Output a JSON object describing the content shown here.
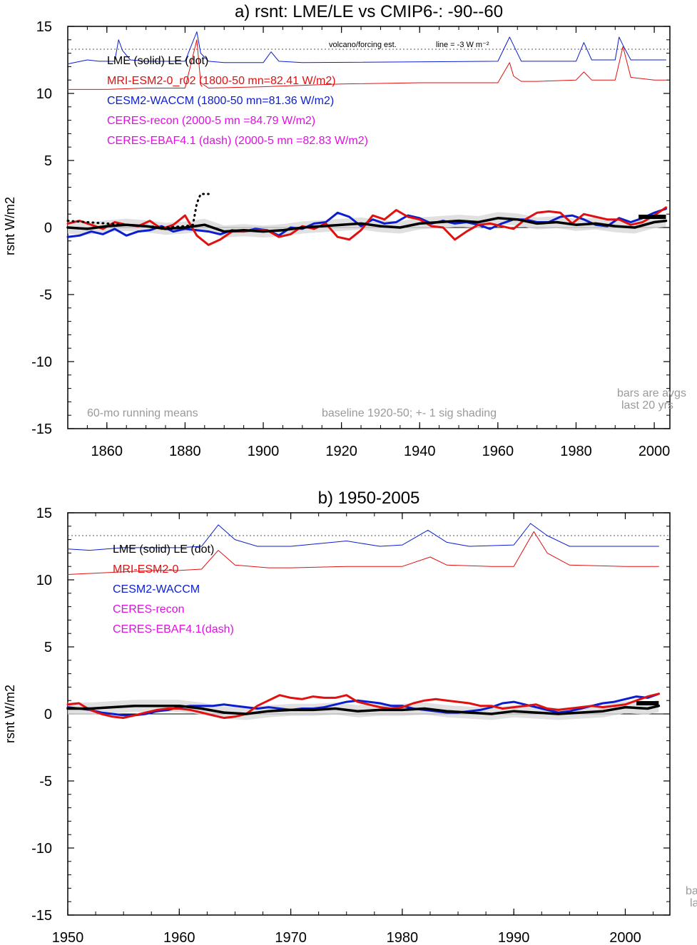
{
  "panels": [
    {
      "title": "a) rsnt: LME/LE vs CMIP6-: -90--60",
      "ylabel": "rsnt W/m2",
      "xlim": [
        1850,
        2004
      ],
      "ylim": [
        -15,
        15
      ],
      "xticks": [
        1860,
        1880,
        1900,
        1920,
        1940,
        1960,
        1980,
        2000
      ],
      "xtick_labels": [
        "1860",
        "1880",
        "1900",
        "1920",
        "1940",
        "1960",
        "1980",
        "2000"
      ],
      "yticks": [
        15,
        10,
        5,
        0,
        -5,
        -10,
        -15
      ],
      "ytick_labels": [
        "15",
        "10",
        "5",
        "0",
        "-5",
        "-10",
        "-15"
      ],
      "legend": [
        {
          "text": "LME (solid)   LE (dot)",
          "color": "#000000"
        },
        {
          "text": "MRI-ESM2-0_r02 (1800-50 mn=82.41 W/m2)",
          "color": "#e01010"
        },
        {
          "text": "CESM2-WACCM (1800-50 mn=81.36 W/m2)",
          "color": "#0a1ed0"
        },
        {
          "text": "CERES-recon (2000-5 mn =84.79 W/m2)",
          "color": "#e010e0"
        },
        {
          "text": "CERES-EBAF4.1 (dash) (2000-5 mn =82.83 W/m2)",
          "color": "#e010e0"
        }
      ],
      "annot_volcano": "volcano/forcing est.",
      "annot_line": "line = -3 W m⁻²",
      "annot_running": "60-mo running means",
      "annot_baseline": "baseline 1920-50; +- 1 sig shading",
      "annot_bars_1": "bars are avgs",
      "annot_bars_2": "last 20 yrs"
    },
    {
      "title": "b) 1950-2005",
      "ylabel": "rsnt W/m2",
      "xlim": [
        1950,
        2004
      ],
      "ylim": [
        -15,
        15
      ],
      "xticks": [
        1950,
        1960,
        1970,
        1980,
        1990,
        2000
      ],
      "xtick_labels": [
        "1950",
        "1960",
        "1970",
        "1980",
        "1990",
        "2000"
      ],
      "yticks": [
        15,
        10,
        5,
        0,
        -5,
        -10,
        -15
      ],
      "ytick_labels": [
        "15",
        "10",
        "5",
        "0",
        "-5",
        "-10",
        "-15"
      ],
      "legend": [
        {
          "text": "LME (solid)      LE (dot)",
          "color": "#000000"
        },
        {
          "text": "MRI-ESM2-0",
          "color": "#e01010"
        },
        {
          "text": "CESM2-WACCM",
          "color": "#0a1ed0"
        },
        {
          "text": "CERES-recon",
          "color": "#e010e0"
        },
        {
          "text": "CERES-EBAF4.1(dash)",
          "color": "#e010e0"
        }
      ],
      "annot_bars_1": "ba",
      "annot_bars_2": "la"
    }
  ],
  "chart_data": [
    {
      "type": "line",
      "title": "a) rsnt: LME/LE vs CMIP6-: -90--60",
      "ylabel": "rsnt W/m2",
      "xlim": [
        1850,
        2004
      ],
      "ylim": [
        -15,
        15
      ],
      "reference_line_y": 13.3,
      "series": [
        {
          "name": "LME",
          "color": "#000000",
          "style": "solid",
          "x": [
            1850,
            1855,
            1860,
            1865,
            1870,
            1875,
            1880,
            1885,
            1890,
            1895,
            1900,
            1905,
            1910,
            1915,
            1920,
            1925,
            1930,
            1935,
            1940,
            1945,
            1950,
            1955,
            1960,
            1965,
            1970,
            1975,
            1980,
            1985,
            1990,
            1995,
            2000,
            2003
          ],
          "y": [
            0.0,
            -0.1,
            0.1,
            0.2,
            0.1,
            -0.1,
            0.0,
            0.2,
            -0.3,
            -0.2,
            -0.3,
            -0.2,
            0.0,
            0.1,
            0.2,
            0.3,
            0.1,
            0.0,
            0.3,
            0.4,
            0.5,
            0.4,
            0.7,
            0.6,
            0.3,
            0.4,
            0.2,
            0.3,
            0.1,
            0.0,
            0.4,
            0.5
          ]
        },
        {
          "name": "LE",
          "color": "#000000",
          "style": "dot",
          "x": [
            1850,
            1855,
            1860,
            1865,
            1870,
            1875,
            1880,
            1882,
            1883,
            1884,
            1886
          ],
          "y": [
            0.5,
            0.4,
            0.3,
            0.2,
            0.1,
            0.0,
            0.1,
            0.2,
            1.8,
            2.5,
            2.5
          ]
        },
        {
          "name": "MRI-ESM2-0_r02",
          "color": "#e01010",
          "style": "solid",
          "x": [
            1850,
            1853,
            1856,
            1859,
            1862,
            1865,
            1868,
            1871,
            1874,
            1877,
            1880,
            1883,
            1886,
            1889,
            1892,
            1895,
            1898,
            1901,
            1904,
            1907,
            1910,
            1913,
            1916,
            1919,
            1922,
            1925,
            1928,
            1931,
            1934,
            1937,
            1940,
            1943,
            1946,
            1949,
            1952,
            1955,
            1958,
            1961,
            1964,
            1967,
            1970,
            1973,
            1976,
            1979,
            1982,
            1985,
            1988,
            1991,
            1994,
            1997,
            2000,
            2003
          ],
          "y": [
            0.3,
            0.5,
            0.2,
            -0.1,
            0.4,
            0.2,
            0.1,
            0.5,
            -0.1,
            0.2,
            0.9,
            -0.6,
            -1.3,
            -0.9,
            -0.3,
            -0.3,
            -0.2,
            -0.2,
            -0.7,
            -0.5,
            0.1,
            -0.1,
            0.3,
            -0.7,
            -0.9,
            -0.2,
            0.9,
            0.6,
            1.3,
            0.8,
            0.6,
            0.1,
            0.0,
            -0.9,
            -0.3,
            0.2,
            0.3,
            0.1,
            -0.1,
            0.6,
            1.1,
            1.2,
            1.1,
            0.3,
            1.0,
            0.8,
            0.6,
            0.6,
            0.2,
            0.4,
            0.9,
            1.5
          ]
        },
        {
          "name": "CESM2-WACCM",
          "color": "#0a1ed0",
          "style": "solid",
          "x": [
            1850,
            1853,
            1856,
            1859,
            1862,
            1865,
            1868,
            1871,
            1874,
            1877,
            1880,
            1883,
            1886,
            1889,
            1892,
            1895,
            1898,
            1901,
            1904,
            1907,
            1910,
            1913,
            1916,
            1919,
            1922,
            1925,
            1928,
            1931,
            1934,
            1937,
            1940,
            1943,
            1946,
            1949,
            1952,
            1955,
            1958,
            1961,
            1964,
            1967,
            1970,
            1973,
            1976,
            1979,
            1982,
            1985,
            1988,
            1991,
            1994,
            1997,
            2000,
            2003
          ],
          "y": [
            -0.7,
            -0.6,
            -0.3,
            -0.5,
            -0.1,
            -0.6,
            -0.3,
            -0.2,
            0.1,
            -0.3,
            -0.1,
            -0.2,
            -0.3,
            -0.5,
            -0.2,
            -0.3,
            -0.1,
            -0.2,
            -0.6,
            0.0,
            -0.1,
            0.3,
            0.4,
            1.1,
            0.8,
            0.1,
            0.6,
            0.3,
            0.4,
            0.9,
            0.7,
            0.3,
            0.5,
            0.3,
            0.4,
            0.2,
            -0.1,
            0.3,
            0.6,
            0.6,
            0.4,
            0.4,
            0.8,
            0.9,
            0.6,
            0.2,
            0.1,
            0.7,
            0.4,
            0.7,
            1.1,
            1.4
          ]
        },
        {
          "name": "CESM2-WACCM (volcano/forcing est.)",
          "color": "#0a1ed0",
          "style": "thin",
          "x": [
            1850,
            1855,
            1858,
            1862,
            1863,
            1864,
            1866,
            1870,
            1880,
            1883,
            1884,
            1886,
            1890,
            1900,
            1902,
            1904,
            1910,
            1960,
            1963,
            1964,
            1966,
            1970,
            1980,
            1982,
            1984,
            1990,
            1991,
            1992,
            1994,
            2000,
            2003
          ],
          "y": [
            12.2,
            12.5,
            12.4,
            12.4,
            14.0,
            13.2,
            12.5,
            12.4,
            12.4,
            14.6,
            13.0,
            12.4,
            12.3,
            12.3,
            13.1,
            12.4,
            12.3,
            12.4,
            14.2,
            13.6,
            12.4,
            12.4,
            12.4,
            13.8,
            12.5,
            12.5,
            14.2,
            13.6,
            12.5,
            12.5,
            12.5
          ]
        },
        {
          "name": "MRI-ESM2-0 (volcano/forcing est.)",
          "color": "#e01010",
          "style": "thin",
          "x": [
            1850,
            1860,
            1870,
            1880,
            1883,
            1884,
            1886,
            1900,
            1920,
            1940,
            1960,
            1963,
            1964,
            1966,
            1970,
            1980,
            1982,
            1984,
            1990,
            1992,
            1994,
            2000,
            2003
          ],
          "y": [
            10.3,
            10.3,
            10.4,
            10.4,
            14.0,
            10.8,
            10.4,
            10.5,
            10.7,
            10.8,
            10.8,
            12.3,
            11.3,
            10.9,
            10.9,
            11.0,
            11.6,
            11.0,
            11.0,
            13.5,
            11.2,
            11.0,
            11.0
          ]
        }
      ],
      "bars_last_20_yrs": [
        {
          "color": "#000000",
          "y": 0.8,
          "x": [
            1996,
            2003
          ]
        }
      ]
    },
    {
      "type": "line",
      "title": "b) 1950-2005",
      "ylabel": "rsnt W/m2",
      "xlim": [
        1950,
        2004
      ],
      "ylim": [
        -15,
        15
      ],
      "reference_line_y": 13.3,
      "series": [
        {
          "name": "LME",
          "color": "#000000",
          "style": "solid",
          "x": [
            1950,
            1952,
            1954,
            1956,
            1958,
            1960,
            1962,
            1964,
            1966,
            1968,
            1970,
            1972,
            1974,
            1976,
            1978,
            1980,
            1982,
            1984,
            1986,
            1988,
            1990,
            1992,
            1994,
            1996,
            1998,
            2000,
            2002,
            2003
          ],
          "y": [
            0.4,
            0.4,
            0.5,
            0.6,
            0.6,
            0.6,
            0.4,
            0.1,
            0.0,
            0.2,
            0.3,
            0.3,
            0.4,
            0.2,
            0.3,
            0.3,
            0.4,
            0.2,
            0.1,
            0.0,
            0.2,
            0.1,
            0.0,
            0.1,
            0.2,
            0.5,
            0.4,
            0.6
          ]
        },
        {
          "name": "MRI-ESM2-0",
          "color": "#e01010",
          "style": "solid",
          "x": [
            1950,
            1951,
            1952,
            1953,
            1954,
            1955,
            1956,
            1957,
            1958,
            1959,
            1960,
            1961,
            1962,
            1963,
            1964,
            1965,
            1966,
            1967,
            1968,
            1969,
            1970,
            1971,
            1972,
            1973,
            1974,
            1975,
            1976,
            1977,
            1978,
            1979,
            1980,
            1981,
            1982,
            1983,
            1984,
            1985,
            1986,
            1987,
            1988,
            1989,
            1990,
            1991,
            1992,
            1993,
            1994,
            1995,
            1996,
            1997,
            1998,
            1999,
            2000,
            2001,
            2002,
            2003
          ],
          "y": [
            0.7,
            0.8,
            0.3,
            0.0,
            -0.2,
            -0.3,
            -0.1,
            0.1,
            0.3,
            0.4,
            0.4,
            0.3,
            0.1,
            -0.1,
            -0.3,
            -0.2,
            0.0,
            0.6,
            1.0,
            1.4,
            1.2,
            1.1,
            1.3,
            1.2,
            1.2,
            1.4,
            0.9,
            0.7,
            0.5,
            0.4,
            0.5,
            0.8,
            1.0,
            1.1,
            1.0,
            0.9,
            0.8,
            0.6,
            0.6,
            0.4,
            0.5,
            0.6,
            0.7,
            0.4,
            0.3,
            0.4,
            0.5,
            0.6,
            0.5,
            0.6,
            0.7,
            1.0,
            1.3,
            1.5
          ]
        },
        {
          "name": "CESM2-WACCM",
          "color": "#0a1ed0",
          "style": "solid",
          "x": [
            1950,
            1951,
            1952,
            1953,
            1954,
            1955,
            1956,
            1957,
            1958,
            1959,
            1960,
            1961,
            1962,
            1963,
            1964,
            1965,
            1966,
            1967,
            1968,
            1969,
            1970,
            1971,
            1972,
            1973,
            1974,
            1975,
            1976,
            1977,
            1978,
            1979,
            1980,
            1981,
            1982,
            1983,
            1984,
            1985,
            1986,
            1987,
            1988,
            1989,
            1990,
            1991,
            1992,
            1993,
            1994,
            1995,
            1996,
            1997,
            1998,
            1999,
            2000,
            2001,
            2002,
            2003
          ],
          "y": [
            0.5,
            0.4,
            0.3,
            0.1,
            0.0,
            -0.1,
            -0.1,
            0.0,
            0.2,
            0.3,
            0.5,
            0.6,
            0.6,
            0.6,
            0.7,
            0.6,
            0.5,
            0.4,
            0.5,
            0.4,
            0.3,
            0.4,
            0.4,
            0.5,
            0.7,
            0.9,
            1.0,
            0.9,
            0.8,
            0.6,
            0.6,
            0.4,
            0.3,
            0.2,
            0.1,
            0.1,
            0.2,
            0.3,
            0.5,
            0.8,
            0.9,
            0.7,
            0.5,
            0.3,
            0.1,
            0.2,
            0.4,
            0.6,
            0.8,
            0.9,
            1.1,
            1.3,
            1.2,
            1.5
          ]
        },
        {
          "name": "CESM2-WACCM (volcano/forcing est.)",
          "color": "#0a1ed0",
          "style": "thin",
          "x": [
            1950,
            1952,
            1955,
            1958,
            1960,
            1962,
            1963.5,
            1965,
            1967,
            1970,
            1975,
            1978,
            1980,
            1982.3,
            1984,
            1986,
            1990,
            1991.5,
            1993,
            1995,
            2000,
            2003
          ],
          "y": [
            12.3,
            12.2,
            12.4,
            12.4,
            12.4,
            12.5,
            14.1,
            13.0,
            12.5,
            12.5,
            12.9,
            12.5,
            12.6,
            13.7,
            12.8,
            12.5,
            12.6,
            14.2,
            13.3,
            12.5,
            12.5,
            12.5
          ]
        },
        {
          "name": "MRI-ESM2-0 (volcano/forcing est.)",
          "color": "#e01010",
          "style": "thin",
          "x": [
            1950,
            1955,
            1958,
            1960,
            1962,
            1963.5,
            1965,
            1968,
            1970,
            1975,
            1980,
            1982.5,
            1984,
            1988,
            1990,
            1991.8,
            1993,
            1995,
            2000,
            2003
          ],
          "y": [
            10.4,
            10.6,
            10.7,
            10.7,
            10.8,
            12.2,
            11.1,
            10.9,
            10.9,
            11.0,
            11.0,
            11.7,
            11.1,
            11.0,
            11.0,
            13.6,
            12.0,
            11.1,
            11.0,
            11.0
          ]
        }
      ],
      "bars_last_20_yrs": [
        {
          "color": "#000000",
          "y": 0.8,
          "x": [
            2001,
            2003
          ]
        }
      ]
    }
  ]
}
